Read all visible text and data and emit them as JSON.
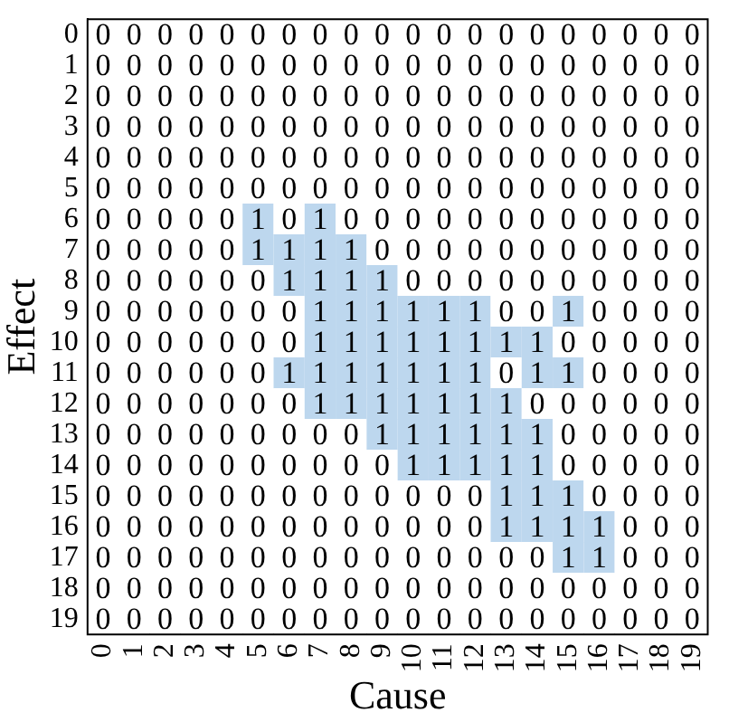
{
  "chart_data": {
    "type": "heatmap",
    "xlabel": "Cause",
    "ylabel": "Effect",
    "color": "#bdd7ee",
    "data_labels": true,
    "categories": [
      "0",
      "1",
      "2",
      "3",
      "4",
      "5",
      "6",
      "7",
      "8",
      "9",
      "10",
      "11",
      "12",
      "13",
      "14",
      "15",
      "16",
      "17",
      "18",
      "19"
    ],
    "y_categories": [
      "0",
      "1",
      "2",
      "3",
      "4",
      "5",
      "6",
      "7",
      "8",
      "9",
      "10",
      "11",
      "12",
      "13",
      "14",
      "15",
      "16",
      "17",
      "18",
      "19"
    ],
    "cells": [
      [
        0,
        0,
        0,
        0,
        0,
        0,
        0,
        0,
        0,
        0,
        0,
        0,
        0,
        0,
        0,
        0,
        0,
        0,
        0,
        0
      ],
      [
        0,
        0,
        0,
        0,
        0,
        0,
        0,
        0,
        0,
        0,
        0,
        0,
        0,
        0,
        0,
        0,
        0,
        0,
        0,
        0
      ],
      [
        0,
        0,
        0,
        0,
        0,
        0,
        0,
        0,
        0,
        0,
        0,
        0,
        0,
        0,
        0,
        0,
        0,
        0,
        0,
        0
      ],
      [
        0,
        0,
        0,
        0,
        0,
        0,
        0,
        0,
        0,
        0,
        0,
        0,
        0,
        0,
        0,
        0,
        0,
        0,
        0,
        0
      ],
      [
        0,
        0,
        0,
        0,
        0,
        0,
        0,
        0,
        0,
        0,
        0,
        0,
        0,
        0,
        0,
        0,
        0,
        0,
        0,
        0
      ],
      [
        0,
        0,
        0,
        0,
        0,
        0,
        0,
        0,
        0,
        0,
        0,
        0,
        0,
        0,
        0,
        0,
        0,
        0,
        0,
        0
      ],
      [
        0,
        0,
        0,
        0,
        0,
        1,
        0,
        1,
        0,
        0,
        0,
        0,
        0,
        0,
        0,
        0,
        0,
        0,
        0,
        0
      ],
      [
        0,
        0,
        0,
        0,
        0,
        1,
        1,
        1,
        1,
        0,
        0,
        0,
        0,
        0,
        0,
        0,
        0,
        0,
        0,
        0
      ],
      [
        0,
        0,
        0,
        0,
        0,
        0,
        1,
        1,
        1,
        1,
        0,
        0,
        0,
        0,
        0,
        0,
        0,
        0,
        0,
        0
      ],
      [
        0,
        0,
        0,
        0,
        0,
        0,
        0,
        1,
        1,
        1,
        1,
        1,
        1,
        0,
        0,
        1,
        0,
        0,
        0,
        0
      ],
      [
        0,
        0,
        0,
        0,
        0,
        0,
        0,
        1,
        1,
        1,
        1,
        1,
        1,
        1,
        1,
        0,
        0,
        0,
        0,
        0
      ],
      [
        0,
        0,
        0,
        0,
        0,
        0,
        1,
        1,
        1,
        1,
        1,
        1,
        1,
        0,
        1,
        1,
        0,
        0,
        0,
        0
      ],
      [
        0,
        0,
        0,
        0,
        0,
        0,
        0,
        1,
        1,
        1,
        1,
        1,
        1,
        1,
        0,
        0,
        0,
        0,
        0,
        0
      ],
      [
        0,
        0,
        0,
        0,
        0,
        0,
        0,
        0,
        0,
        1,
        1,
        1,
        1,
        1,
        1,
        0,
        0,
        0,
        0,
        0
      ],
      [
        0,
        0,
        0,
        0,
        0,
        0,
        0,
        0,
        0,
        0,
        1,
        1,
        1,
        1,
        1,
        0,
        0,
        0,
        0,
        0
      ],
      [
        0,
        0,
        0,
        0,
        0,
        0,
        0,
        0,
        0,
        0,
        0,
        0,
        0,
        1,
        1,
        1,
        0,
        0,
        0,
        0
      ],
      [
        0,
        0,
        0,
        0,
        0,
        0,
        0,
        0,
        0,
        0,
        0,
        0,
        0,
        1,
        1,
        1,
        1,
        0,
        0,
        0
      ],
      [
        0,
        0,
        0,
        0,
        0,
        0,
        0,
        0,
        0,
        0,
        0,
        0,
        0,
        0,
        0,
        1,
        1,
        0,
        0,
        0
      ],
      [
        0,
        0,
        0,
        0,
        0,
        0,
        0,
        0,
        0,
        0,
        0,
        0,
        0,
        0,
        0,
        0,
        0,
        0,
        0,
        0
      ],
      [
        0,
        0,
        0,
        0,
        0,
        0,
        0,
        0,
        0,
        0,
        0,
        0,
        0,
        0,
        0,
        0,
        0,
        0,
        0,
        0
      ]
    ]
  }
}
